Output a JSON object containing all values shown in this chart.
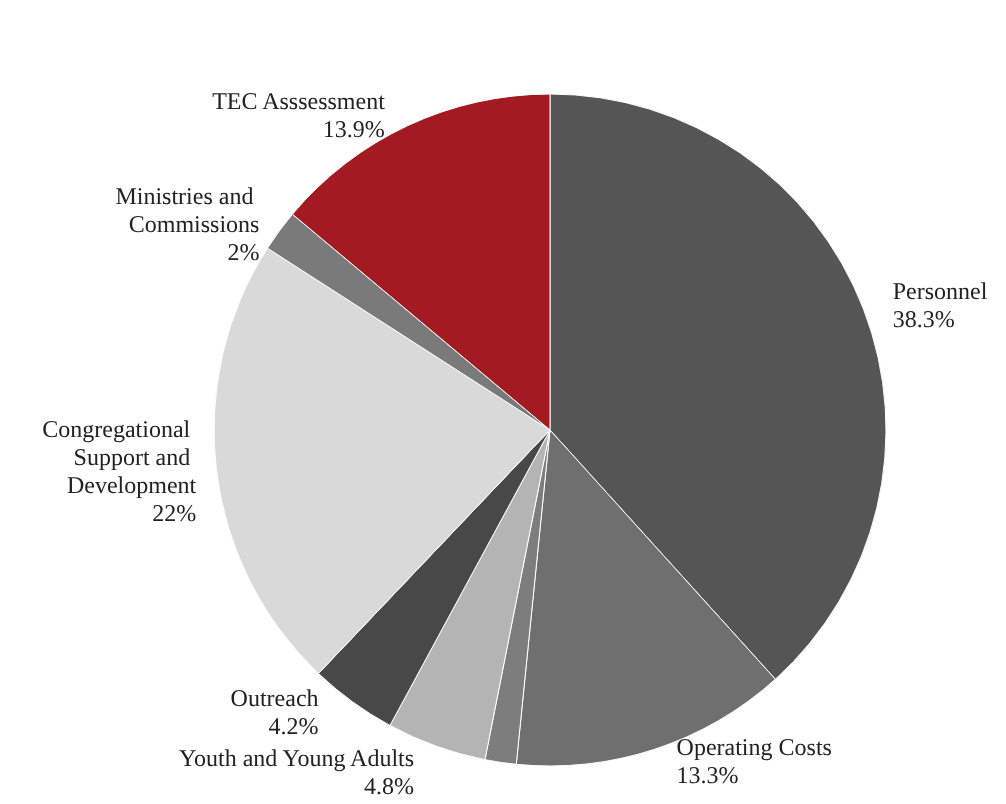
{
  "chart_data": {
    "type": "pie",
    "categories": [
      "Personnel",
      "Operating Costs",
      null,
      "Youth and Young Adults",
      "Outreach",
      "Congregational Support and Development",
      "Ministries and Commissions",
      "TEC Asssessment"
    ],
    "values": [
      38.3,
      13.3,
      1.5,
      4.8,
      4.2,
      22,
      2,
      13.9
    ],
    "value_labels": [
      "38.3%",
      "13.3%",
      null,
      "4.8%",
      "4.2%",
      "22%",
      "2%",
      "13.9%"
    ],
    "colors": [
      "#555555",
      "#6f6f6f",
      "#7d7d7d",
      "#b4b4b4",
      "#484848",
      "#d9d9d9",
      "#7a7a7a",
      "#a31a22"
    ],
    "legend": false
  }
}
